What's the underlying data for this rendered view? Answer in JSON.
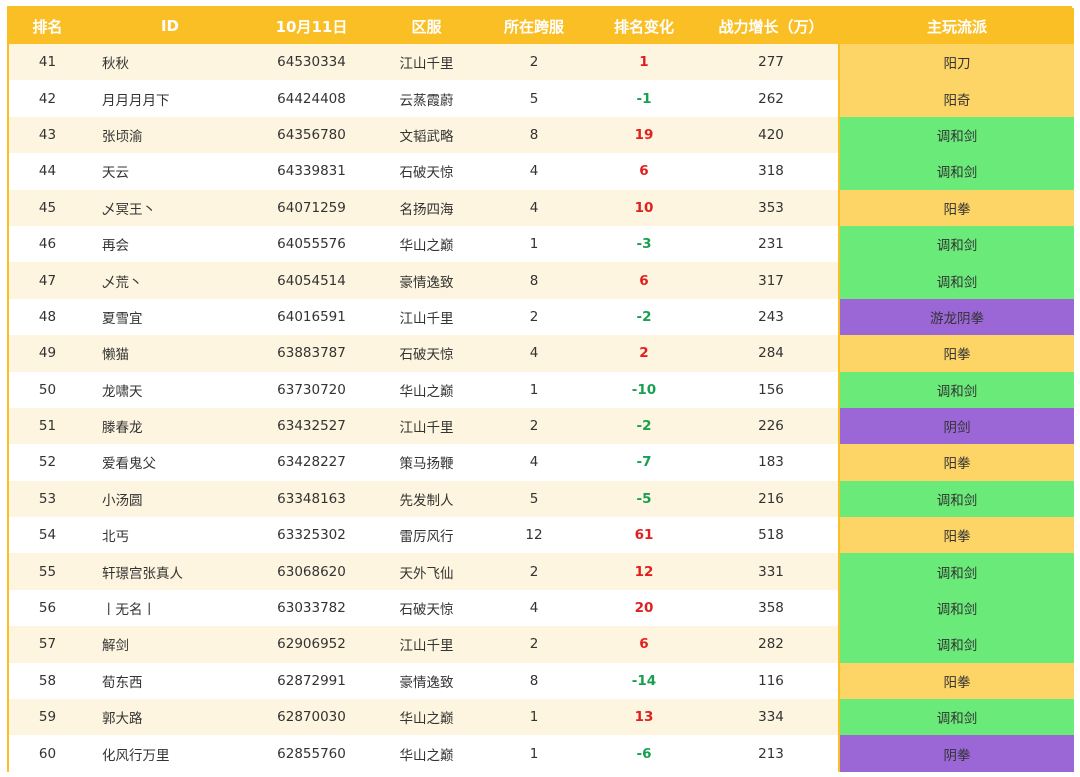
{
  "headers": [
    "排名",
    "ID",
    "10月11日",
    "区服",
    "所在跨服",
    "排名变化",
    "战力增长（万）",
    "主玩流派"
  ],
  "style_colors": {
    "阳刀": "#fdd566",
    "阳奇": "#fdd566",
    "阳拳": "#fdd566",
    "调和剑": "#6aeb79",
    "游龙阴拳": "#9b66d6",
    "阴剑": "#9b66d6",
    "阴拳": "#9b66d6"
  },
  "rows": [
    {
      "rank": "41",
      "id": "秋秋",
      "score": "64530334",
      "server": "江山千里",
      "cross": "2",
      "change": "1",
      "growth": "277",
      "style": "阳刀"
    },
    {
      "rank": "42",
      "id": "月月月月下",
      "score": "64424408",
      "server": "云蒸霞蔚",
      "cross": "5",
      "change": "-1",
      "growth": "262",
      "style": "阳奇"
    },
    {
      "rank": "43",
      "id": "张顷渝",
      "score": "64356780",
      "server": "文韬武略",
      "cross": "8",
      "change": "19",
      "growth": "420",
      "style": "调和剑"
    },
    {
      "rank": "44",
      "id": "天云",
      "score": "64339831",
      "server": "石破天惊",
      "cross": "4",
      "change": "6",
      "growth": "318",
      "style": "调和剑"
    },
    {
      "rank": "45",
      "id": "乄冥王丶",
      "score": "64071259",
      "server": "名扬四海",
      "cross": "4",
      "change": "10",
      "growth": "353",
      "style": "阳拳"
    },
    {
      "rank": "46",
      "id": "再会",
      "score": "64055576",
      "server": "华山之巅",
      "cross": "1",
      "change": "-3",
      "growth": "231",
      "style": "调和剑"
    },
    {
      "rank": "47",
      "id": "乄荒丶",
      "score": "64054514",
      "server": "豪情逸致",
      "cross": "8",
      "change": "6",
      "growth": "317",
      "style": "调和剑"
    },
    {
      "rank": "48",
      "id": "夏雪宜",
      "score": "64016591",
      "server": "江山千里",
      "cross": "2",
      "change": "-2",
      "growth": "243",
      "style": "游龙阴拳"
    },
    {
      "rank": "49",
      "id": "懒猫",
      "score": "63883787",
      "server": "石破天惊",
      "cross": "4",
      "change": "2",
      "growth": "284",
      "style": "阳拳"
    },
    {
      "rank": "50",
      "id": "龙啸天",
      "score": "63730720",
      "server": "华山之巅",
      "cross": "1",
      "change": "-10",
      "growth": "156",
      "style": "调和剑"
    },
    {
      "rank": "51",
      "id": "滕春龙",
      "score": "63432527",
      "server": "江山千里",
      "cross": "2",
      "change": "-2",
      "growth": "226",
      "style": "阴剑"
    },
    {
      "rank": "52",
      "id": "爱看鬼父",
      "score": "63428227",
      "server": "策马扬鞭",
      "cross": "4",
      "change": "-7",
      "growth": "183",
      "style": "阳拳"
    },
    {
      "rank": "53",
      "id": "小汤圆",
      "score": "63348163",
      "server": "先发制人",
      "cross": "5",
      "change": "-5",
      "growth": "216",
      "style": "调和剑"
    },
    {
      "rank": "54",
      "id": "北丐",
      "score": "63325302",
      "server": "雷厉风行",
      "cross": "12",
      "change": "61",
      "growth": "518",
      "style": "阳拳"
    },
    {
      "rank": "55",
      "id": "轩璟宫张真人",
      "score": "63068620",
      "server": "天外飞仙",
      "cross": "2",
      "change": "12",
      "growth": "331",
      "style": "调和剑"
    },
    {
      "rank": "56",
      "id": "丨无名丨",
      "score": "63033782",
      "server": "石破天惊",
      "cross": "4",
      "change": "20",
      "growth": "358",
      "style": "调和剑"
    },
    {
      "rank": "57",
      "id": "解剑",
      "score": "62906952",
      "server": "江山千里",
      "cross": "2",
      "change": "6",
      "growth": "282",
      "style": "调和剑"
    },
    {
      "rank": "58",
      "id": "荀东西",
      "score": "62872991",
      "server": "豪情逸致",
      "cross": "8",
      "change": "-14",
      "growth": "116",
      "style": "阳拳"
    },
    {
      "rank": "59",
      "id": "郭大路",
      "score": "62870030",
      "server": "华山之巅",
      "cross": "1",
      "change": "13",
      "growth": "334",
      "style": "调和剑"
    },
    {
      "rank": "60",
      "id": "化风行万里",
      "score": "62855760",
      "server": "华山之巅",
      "cross": "1",
      "change": "-6",
      "growth": "213",
      "style": "阴拳"
    }
  ]
}
